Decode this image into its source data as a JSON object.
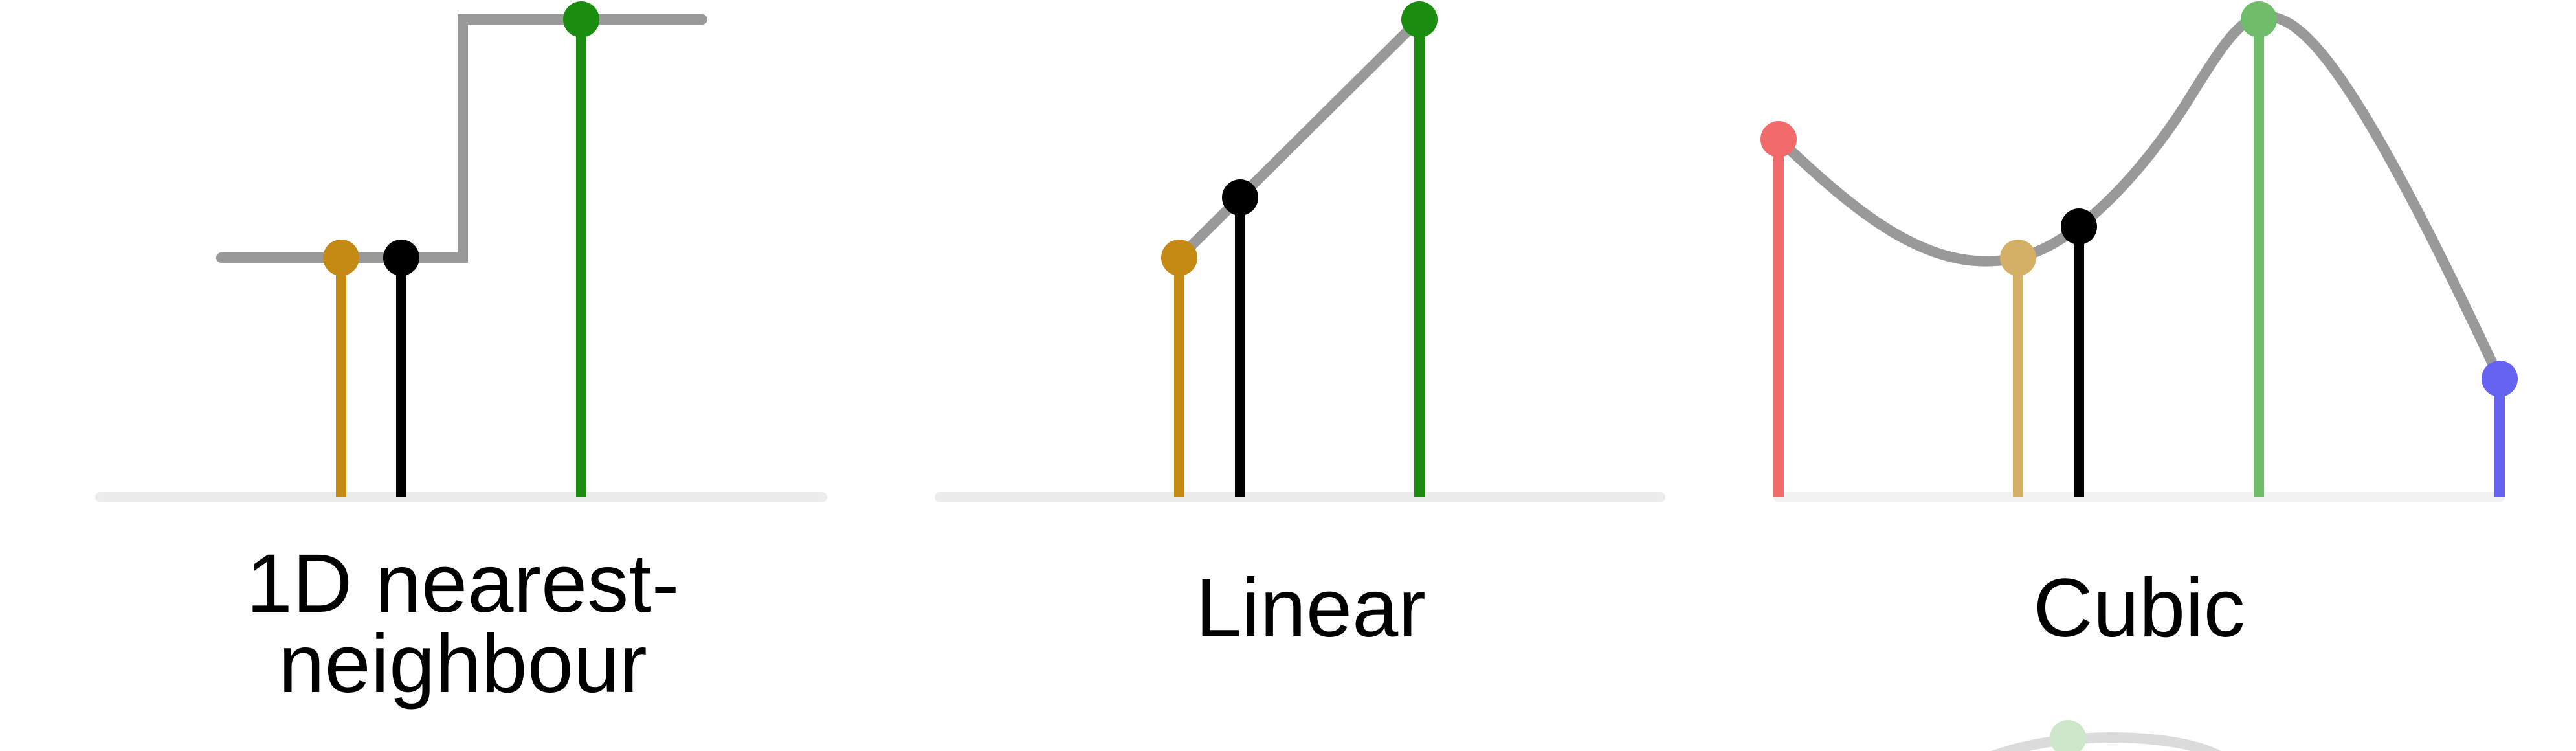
{
  "panels": {
    "nearest": {
      "label_line1": "1D nearest-",
      "label_line2": "neighbour"
    },
    "linear": {
      "label": "Linear"
    },
    "cubic": {
      "label": "Cubic"
    }
  },
  "colors": {
    "baseline": "#ececec",
    "curve": "#999999",
    "query_point": "#000000",
    "nearest_left": "#c48a14",
    "nearest_right": "#1a8c0e",
    "cubic_far_left": "#f26b6b",
    "cubic_left": "#d4b066",
    "cubic_right": "#6fbd6a",
    "cubic_far_right": "#6464f0"
  }
}
